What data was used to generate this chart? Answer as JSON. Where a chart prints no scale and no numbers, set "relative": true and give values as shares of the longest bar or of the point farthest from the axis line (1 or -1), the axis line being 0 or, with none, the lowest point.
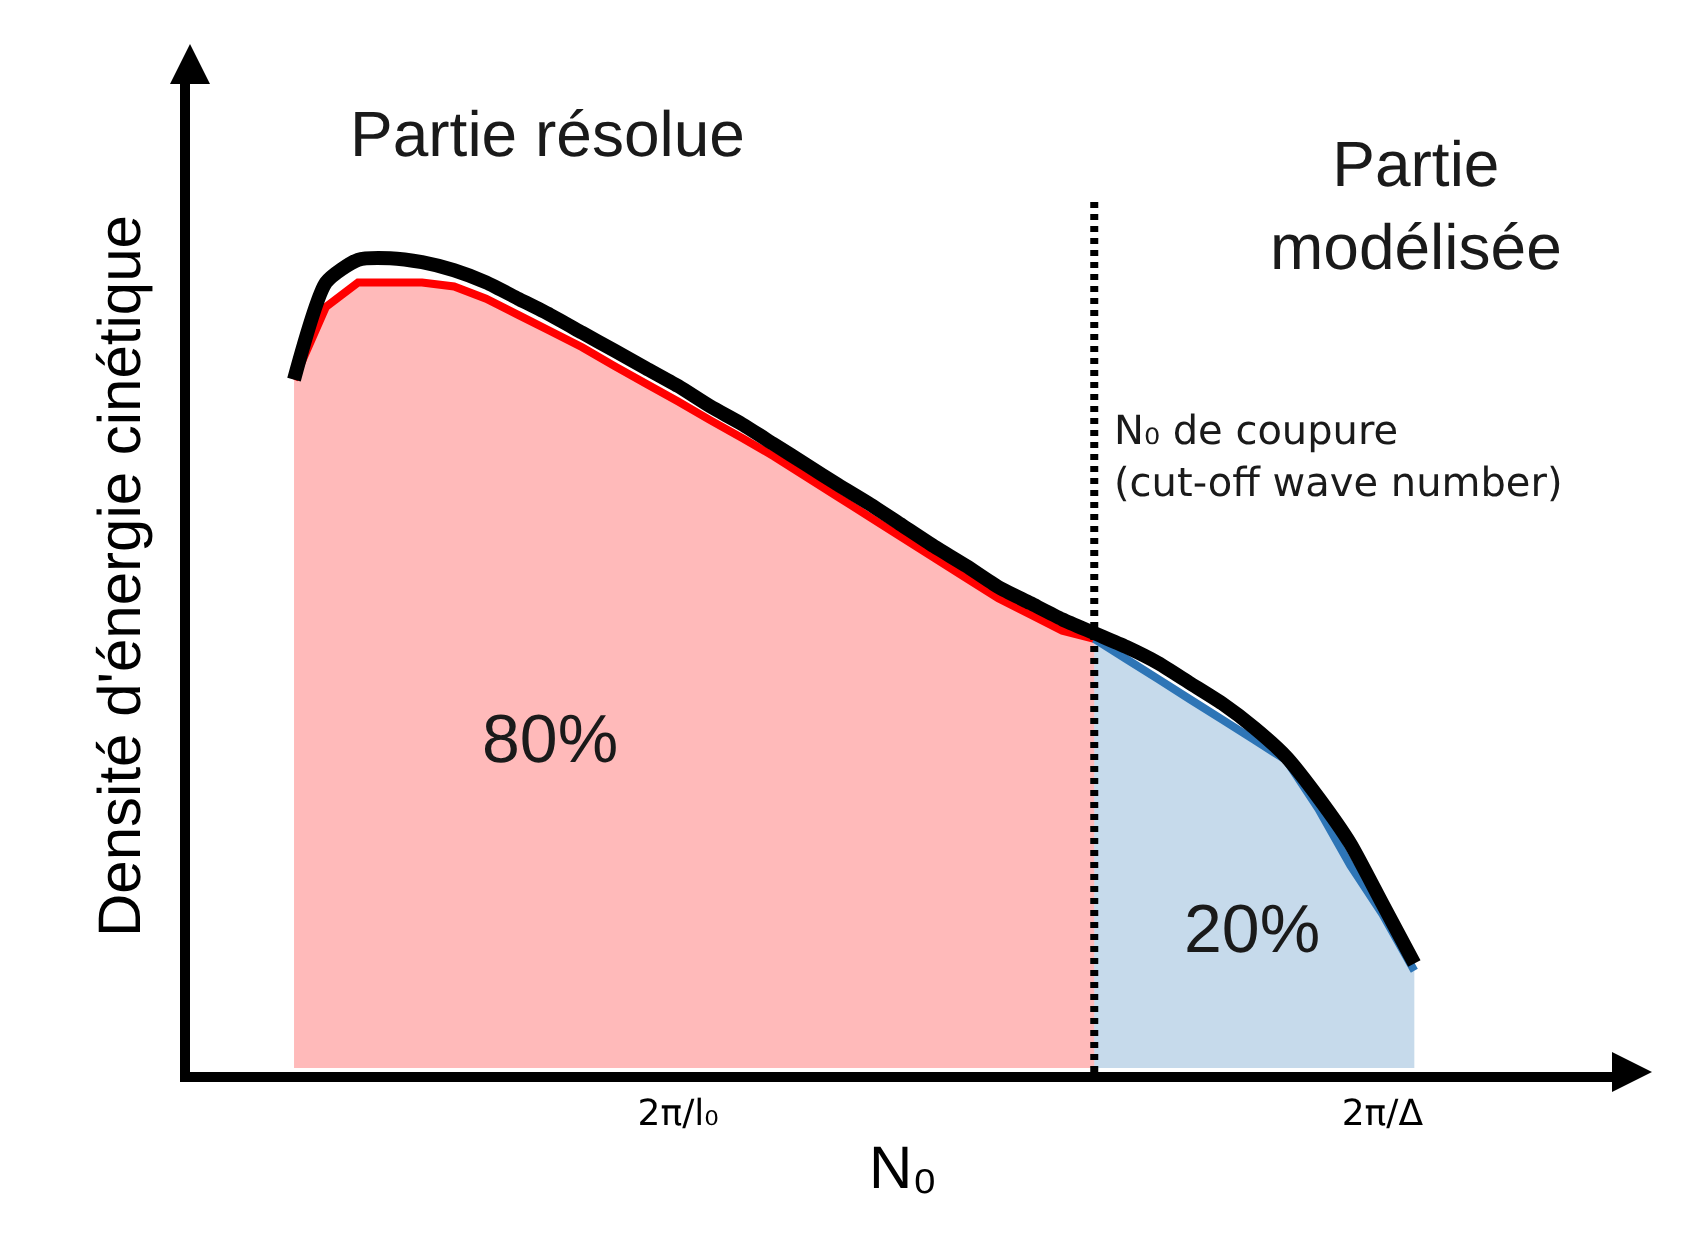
{
  "chart_data": {
    "type": "area",
    "relative": true,
    "xlabel": "N₀",
    "ylabel": "Densité d'énergie cinétique",
    "categories": [
      null,
      null,
      null,
      null,
      null,
      null,
      null,
      null,
      null,
      null,
      null,
      null,
      "2π/l₀",
      null,
      null,
      null,
      null,
      null,
      null,
      null,
      null,
      null,
      null,
      null,
      null,
      null,
      null,
      null,
      null,
      null,
      null,
      null,
      null,
      null,
      "2π/Δ",
      null
    ],
    "series": [
      {
        "color": "#ff0000",
        "values": [
          0.85,
          0.94,
          0.97,
          0.97,
          0.97,
          0.965,
          0.95,
          0.93,
          0.91,
          0.89,
          0.867,
          0.845,
          0.823,
          0.8,
          0.778,
          0.755,
          0.73,
          0.705,
          0.68,
          0.655,
          0.63,
          0.605,
          0.58,
          0.56,
          0.54,
          0.53,
          null,
          null,
          null,
          null,
          null,
          null,
          null,
          null,
          null,
          null
        ]
      },
      {
        "color": "#2e75b6",
        "values": [
          null,
          null,
          null,
          null,
          null,
          null,
          null,
          null,
          null,
          null,
          null,
          null,
          null,
          null,
          null,
          null,
          null,
          null,
          null,
          null,
          null,
          null,
          null,
          null,
          null,
          0.53,
          0.505,
          0.48,
          0.455,
          0.43,
          0.405,
          0.38,
          0.32,
          0.25,
          0.19,
          0.12
        ]
      },
      {
        "type": "line",
        "color": "#000000",
        "values": [
          0.85,
          0.97,
          0.998,
          1.0,
          0.995,
          0.985,
          0.97,
          0.95,
          0.93,
          0.908,
          0.886,
          0.864,
          0.842,
          0.817,
          0.795,
          0.77,
          0.745,
          0.72,
          0.696,
          0.67,
          0.644,
          0.62,
          0.594,
          0.574,
          0.554,
          0.537,
          0.52,
          0.5,
          0.475,
          0.45,
          0.42,
          0.384,
          0.334,
          0.277,
          0.203,
          0.129
        ]
      }
    ],
    "annotations": [
      "Partie résolue",
      "Partie\nmodélisée",
      "80%",
      "20%",
      "N₀ de coupure\n(cut-off wave number)"
    ]
  }
}
